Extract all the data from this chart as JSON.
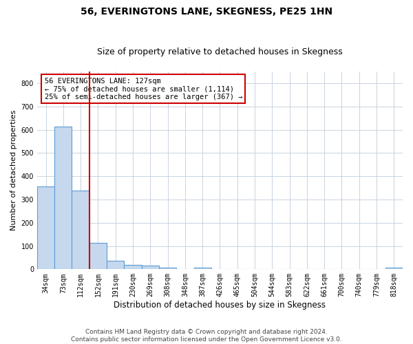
{
  "title": "56, EVERINGTONS LANE, SKEGNESS, PE25 1HN",
  "subtitle": "Size of property relative to detached houses in Skegness",
  "xlabel": "Distribution of detached houses by size in Skegness",
  "ylabel": "Number of detached properties",
  "categories": [
    "34sqm",
    "73sqm",
    "112sqm",
    "152sqm",
    "191sqm",
    "230sqm",
    "269sqm",
    "308sqm",
    "348sqm",
    "387sqm",
    "426sqm",
    "465sqm",
    "504sqm",
    "544sqm",
    "583sqm",
    "622sqm",
    "661sqm",
    "700sqm",
    "740sqm",
    "779sqm",
    "818sqm"
  ],
  "values": [
    357,
    612,
    337,
    113,
    36,
    19,
    15,
    8,
    0,
    8,
    0,
    0,
    0,
    0,
    0,
    0,
    0,
    0,
    0,
    0,
    8
  ],
  "bar_color": "#c5d8ed",
  "bar_edge_color": "#5b9bd5",
  "vline_x_index": 2,
  "vline_color": "#cc0000",
  "annotation_text": "56 EVERINGTONS LANE: 127sqm\n← 75% of detached houses are smaller (1,114)\n25% of semi-detached houses are larger (367) →",
  "annotation_box_color": "#ffffff",
  "annotation_box_edge": "#cc0000",
  "ylim": [
    0,
    850
  ],
  "yticks": [
    0,
    100,
    200,
    300,
    400,
    500,
    600,
    700,
    800
  ],
  "grid_color": "#c8d3e0",
  "footer": "Contains HM Land Registry data © Crown copyright and database right 2024.\nContains public sector information licensed under the Open Government Licence v3.0.",
  "title_fontsize": 10,
  "subtitle_fontsize": 9,
  "tick_fontsize": 7,
  "ylabel_fontsize": 8,
  "xlabel_fontsize": 8.5,
  "footer_fontsize": 6.5,
  "annot_fontsize": 7.5
}
